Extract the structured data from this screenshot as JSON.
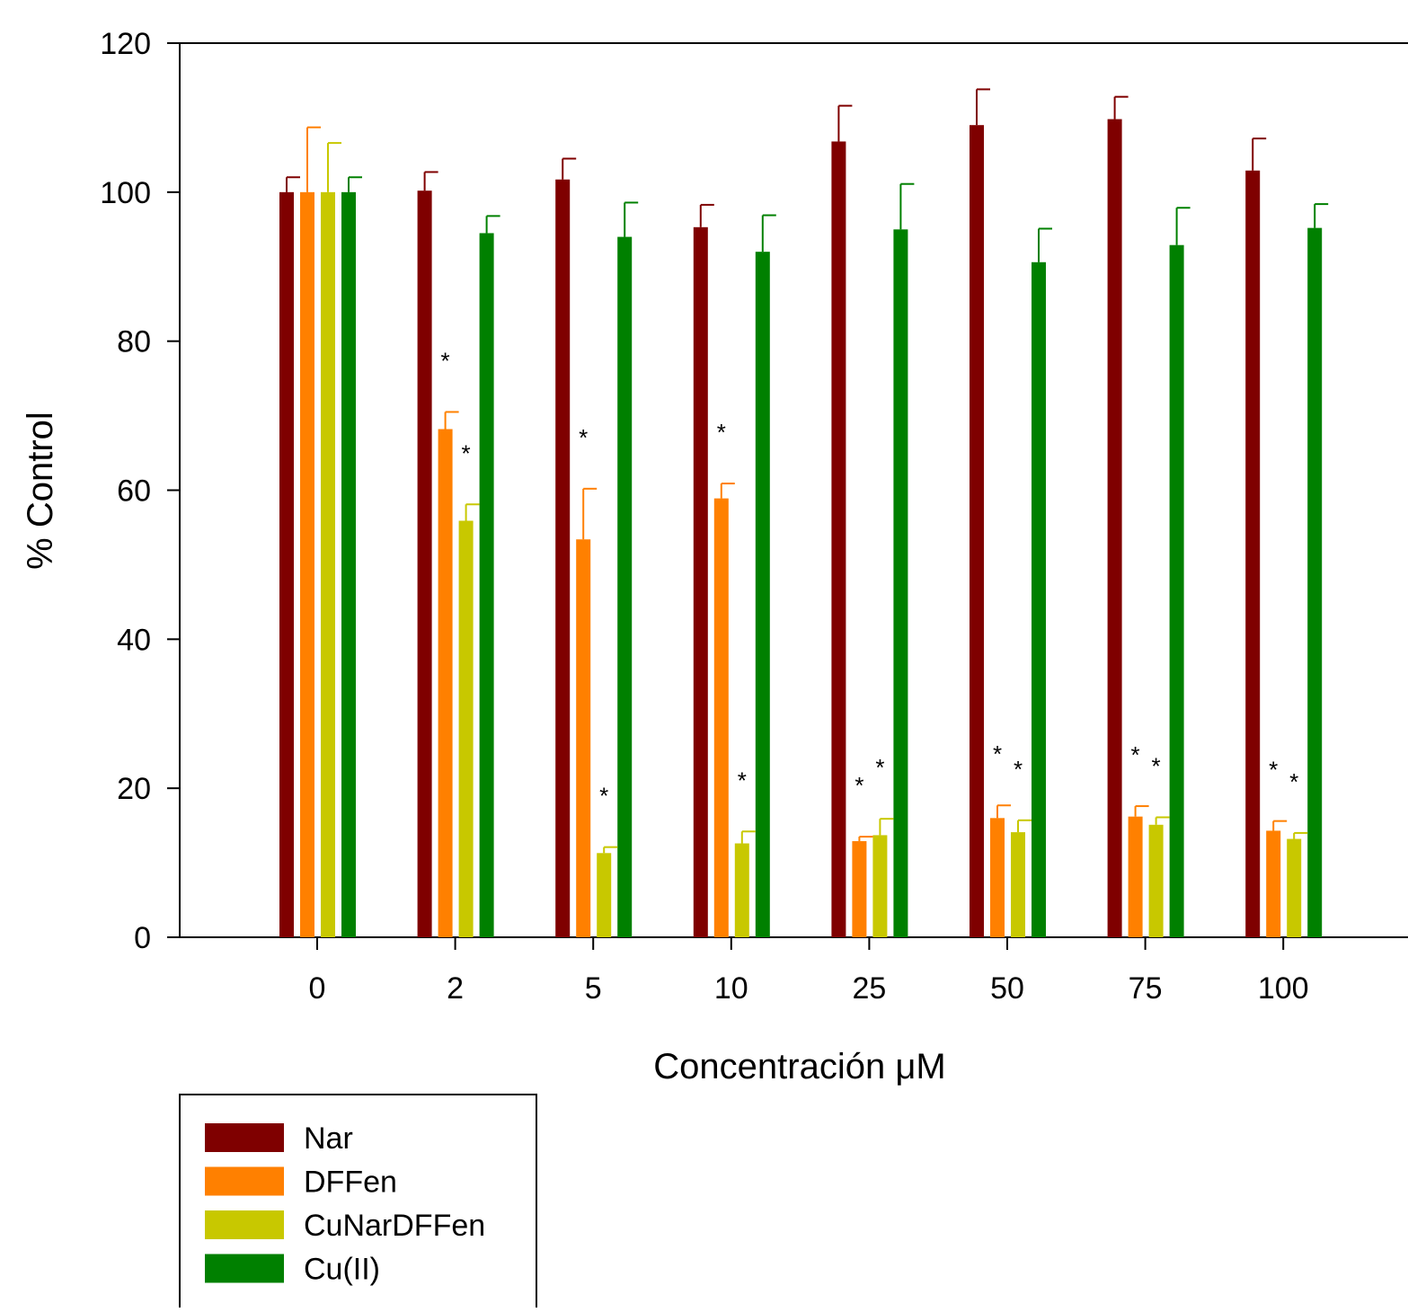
{
  "chart_data": {
    "type": "bar",
    "ylabel": "% Control",
    "xlabel": "Concentración μM",
    "categories": [
      "0",
      "2",
      "5",
      "10",
      "25",
      "50",
      "75",
      "100"
    ],
    "ylim": [
      0,
      120
    ],
    "yticks": [
      0,
      20,
      40,
      60,
      80,
      100,
      120
    ],
    "legend_position": "bottom-left",
    "series": [
      {
        "name": "Nar",
        "color": "#7f0000",
        "values": [
          100,
          100.2,
          101.7,
          95.3,
          106.8,
          109.0,
          109.8,
          102.9
        ],
        "errors": [
          2.0,
          2.5,
          2.8,
          3.0,
          4.8,
          4.8,
          3.0,
          4.3
        ],
        "significant": [
          false,
          false,
          false,
          false,
          false,
          false,
          false,
          false
        ]
      },
      {
        "name": "DFFen",
        "color": "#ff8000",
        "values": [
          100,
          68.2,
          53.4,
          58.9,
          12.9,
          16.0,
          16.2,
          14.3
        ],
        "errors": [
          8.7,
          2.3,
          6.8,
          2.0,
          0.6,
          1.7,
          1.4,
          1.3
        ],
        "significant": [
          false,
          true,
          true,
          true,
          true,
          true,
          true,
          true
        ]
      },
      {
        "name": "CuNarDFFen",
        "color": "#c8c800",
        "values": [
          100,
          55.9,
          11.3,
          12.6,
          13.7,
          14.1,
          15.1,
          13.2
        ],
        "errors": [
          6.6,
          2.2,
          0.8,
          1.6,
          2.2,
          1.6,
          1.0,
          0.8
        ],
        "significant": [
          false,
          true,
          true,
          true,
          true,
          true,
          true,
          true
        ]
      },
      {
        "name": "Cu(II)",
        "color": "#008000",
        "values": [
          100,
          94.5,
          94.0,
          92.0,
          95.0,
          90.6,
          92.9,
          95.2
        ],
        "errors": [
          2.0,
          2.3,
          4.6,
          4.9,
          6.1,
          4.5,
          5.0,
          3.2
        ],
        "significant": [
          false,
          false,
          false,
          false,
          false,
          false,
          false,
          false
        ]
      }
    ],
    "significance_marker": "*"
  }
}
